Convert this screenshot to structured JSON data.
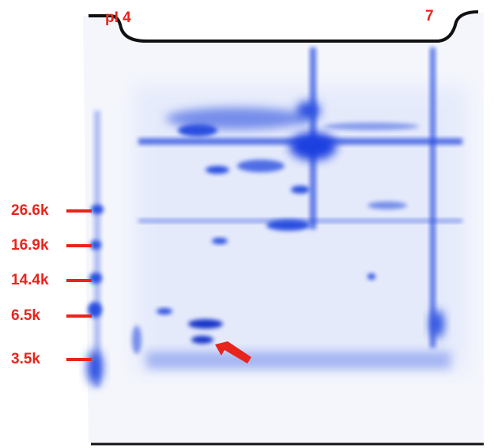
{
  "gel": {
    "ph_left": "pI 4",
    "ph_right": "7",
    "markers": [
      "26.6k",
      "16.9k",
      "14.4k",
      "6.5k",
      "3.5k"
    ]
  }
}
